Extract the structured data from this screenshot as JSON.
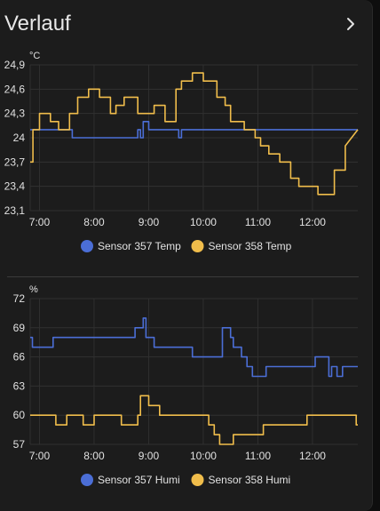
{
  "card": {
    "title": "Verlauf",
    "more_icon": "chevron-right-icon"
  },
  "colors": {
    "background": "#1c1c1c",
    "grid": "#303030",
    "text": "#e1e1e1",
    "sensor357": "#4b6ed6",
    "sensor358": "#f0bd4b"
  },
  "chart_data": [
    {
      "type": "line",
      "unit": "°C",
      "ylim": [
        23.1,
        24.9
      ],
      "yticks": [
        "24,9",
        "24,6",
        "24,3",
        "24",
        "23,7",
        "23,4",
        "23,1"
      ],
      "ytick_values": [
        24.9,
        24.6,
        24.3,
        24.0,
        23.7,
        23.4,
        23.1
      ],
      "xlim": [
        6.83,
        12.83
      ],
      "xticks": [
        "7:00",
        "8:00",
        "9:00",
        "10:00",
        "11:00",
        "12:00"
      ],
      "xtick_values": [
        7,
        8,
        9,
        10,
        11,
        12
      ],
      "grid": true,
      "legend_position": "bottom",
      "series": [
        {
          "name": "Sensor 357 Temp",
          "color": "#4b6ed6",
          "x": [
            6.83,
            7.6,
            7.6,
            8.8,
            8.8,
            8.85,
            8.85,
            8.9,
            8.9,
            9.0,
            9.0,
            9.55,
            9.55,
            9.6,
            9.6,
            12.83
          ],
          "y": [
            24.1,
            24.1,
            24.0,
            24.0,
            24.1,
            24.1,
            24.0,
            24.0,
            24.2,
            24.2,
            24.1,
            24.1,
            24.0,
            24.0,
            24.1,
            24.1
          ]
        },
        {
          "name": "Sensor 358 Temp",
          "color": "#f0bd4b",
          "x": [
            6.83,
            6.88,
            6.88,
            7.0,
            7.0,
            7.2,
            7.2,
            7.35,
            7.35,
            7.55,
            7.55,
            7.7,
            7.7,
            7.9,
            7.9,
            8.1,
            8.1,
            8.3,
            8.3,
            8.4,
            8.4,
            8.55,
            8.55,
            8.8,
            8.8,
            9.1,
            9.1,
            9.3,
            9.3,
            9.5,
            9.5,
            9.6,
            9.6,
            9.8,
            9.8,
            10.0,
            10.0,
            10.25,
            10.25,
            10.4,
            10.4,
            10.5,
            10.5,
            10.75,
            10.75,
            10.95,
            10.95,
            11.05,
            11.05,
            11.2,
            11.2,
            11.4,
            11.4,
            11.6,
            11.6,
            11.75,
            11.75,
            11.9,
            11.9,
            12.1,
            12.1,
            12.4,
            12.4,
            12.6,
            12.6,
            12.83
          ],
          "y": [
            23.7,
            23.7,
            24.1,
            24.1,
            24.3,
            24.3,
            24.2,
            24.2,
            24.1,
            24.1,
            24.3,
            24.3,
            24.5,
            24.5,
            24.6,
            24.6,
            24.5,
            24.5,
            24.3,
            24.3,
            24.4,
            24.4,
            24.5,
            24.5,
            24.3,
            24.3,
            24.4,
            24.4,
            24.2,
            24.2,
            24.6,
            24.6,
            24.7,
            24.7,
            24.8,
            24.8,
            24.7,
            24.7,
            24.5,
            24.5,
            24.4,
            24.4,
            24.2,
            24.2,
            24.1,
            24.1,
            24.0,
            24.0,
            23.9,
            23.9,
            23.8,
            23.8,
            23.7,
            23.7,
            23.5,
            23.5,
            23.4,
            23.4,
            23.4,
            23.4,
            23.3,
            23.3,
            23.6,
            23.6,
            23.9,
            24.1
          ]
        }
      ],
      "legend": [
        {
          "name": "Sensor 357 Temp",
          "color": "#4b6ed6"
        },
        {
          "name": "Sensor 358 Temp",
          "color": "#f0bd4b"
        }
      ]
    },
    {
      "type": "line",
      "unit": "%",
      "ylim": [
        57,
        72
      ],
      "yticks": [
        "72",
        "69",
        "66",
        "63",
        "60",
        "57"
      ],
      "ytick_values": [
        72,
        69,
        66,
        63,
        60,
        57
      ],
      "xlim": [
        6.83,
        12.83
      ],
      "xticks": [
        "7:00",
        "8:00",
        "9:00",
        "10:00",
        "11:00",
        "12:00"
      ],
      "xtick_values": [
        7,
        8,
        9,
        10,
        11,
        12
      ],
      "grid": true,
      "legend_position": "bottom",
      "series": [
        {
          "name": "Sensor 357 Humi",
          "color": "#4b6ed6",
          "x": [
            6.83,
            6.87,
            6.87,
            7.25,
            7.25,
            7.4,
            7.4,
            8.75,
            8.75,
            8.9,
            8.9,
            8.95,
            8.95,
            9.1,
            9.1,
            9.6,
            9.6,
            9.8,
            9.8,
            10.35,
            10.35,
            10.5,
            10.5,
            10.55,
            10.55,
            10.7,
            10.7,
            10.8,
            10.8,
            10.9,
            10.9,
            11.15,
            11.15,
            12.05,
            12.05,
            12.3,
            12.3,
            12.35,
            12.35,
            12.45,
            12.45,
            12.55,
            12.55,
            12.83
          ],
          "y": [
            68,
            68,
            67,
            67,
            68,
            68,
            68,
            68,
            69,
            69,
            70,
            70,
            68,
            68,
            67,
            67,
            67,
            67,
            66,
            66,
            69,
            69,
            68,
            68,
            67,
            67,
            66,
            66,
            65,
            65,
            64,
            64,
            65,
            65,
            66,
            66,
            64,
            64,
            65,
            65,
            64,
            64,
            65,
            65
          ]
        },
        {
          "name": "Sensor 358 Humi",
          "color": "#f0bd4b",
          "x": [
            6.83,
            7.3,
            7.3,
            7.5,
            7.5,
            7.8,
            7.8,
            8.0,
            8.0,
            8.5,
            8.5,
            8.8,
            8.8,
            8.85,
            8.85,
            9.0,
            9.0,
            9.2,
            9.2,
            9.5,
            9.5,
            9.9,
            9.9,
            10.1,
            10.1,
            10.2,
            10.2,
            10.3,
            10.3,
            10.55,
            10.55,
            11.1,
            11.1,
            11.9,
            11.9,
            12.2,
            12.2,
            12.8,
            12.8,
            12.83
          ],
          "y": [
            60,
            60,
            59,
            59,
            60,
            60,
            59,
            59,
            60,
            60,
            59,
            59,
            60,
            60,
            62,
            62,
            61,
            61,
            60,
            60,
            60,
            60,
            60,
            60,
            59,
            59,
            58,
            58,
            57,
            57,
            58,
            58,
            59,
            59,
            60,
            60,
            60,
            60,
            59,
            59
          ]
        }
      ],
      "legend": [
        {
          "name": "Sensor 357 Humi",
          "color": "#4b6ed6"
        },
        {
          "name": "Sensor 358 Humi",
          "color": "#f0bd4b"
        }
      ]
    }
  ]
}
